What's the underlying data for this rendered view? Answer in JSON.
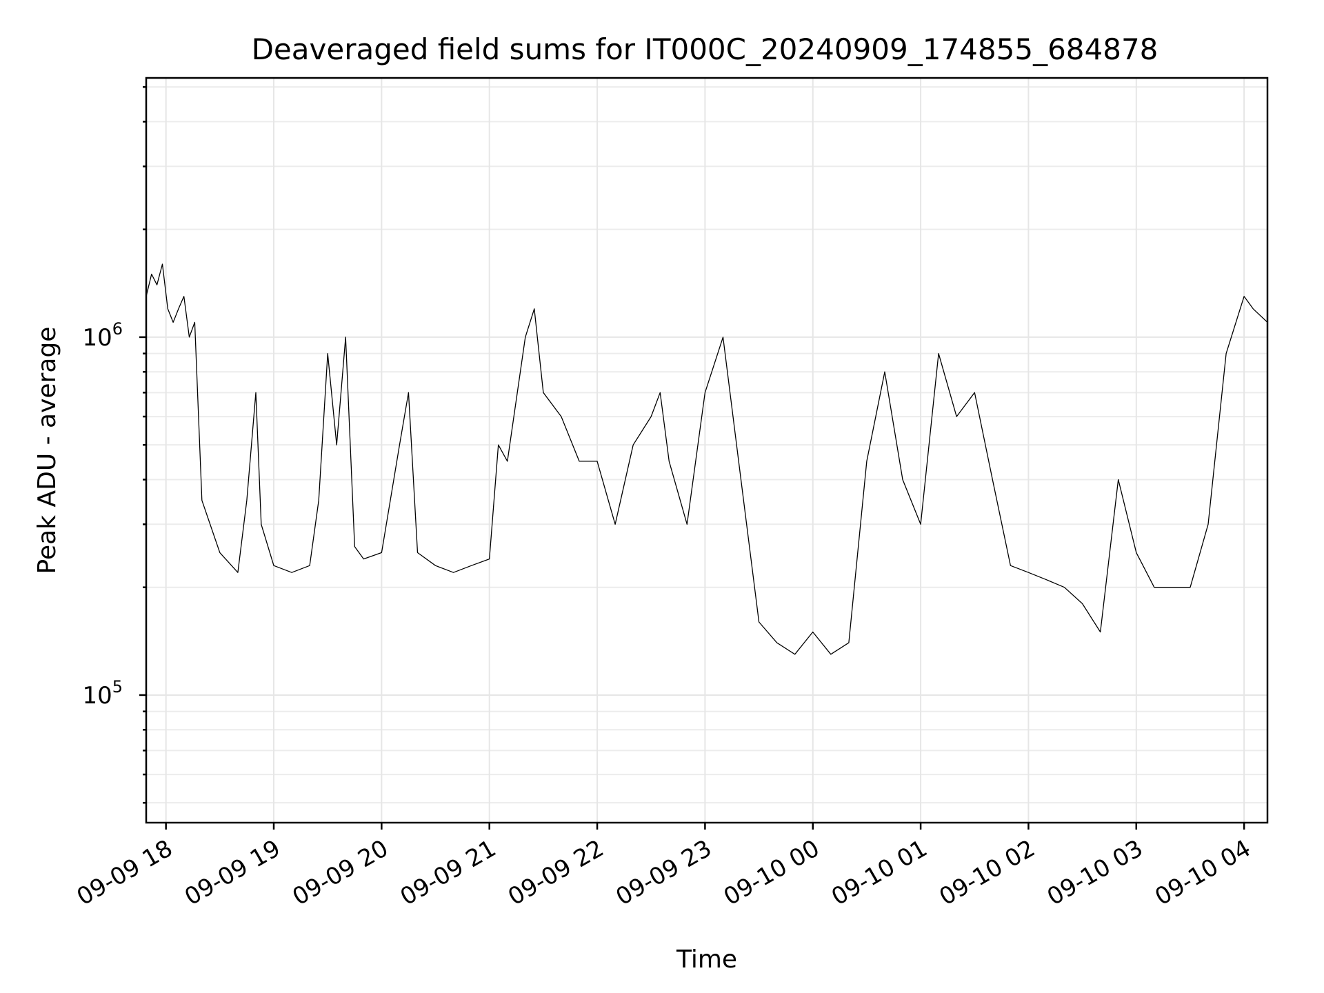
{
  "chart_data": {
    "type": "line",
    "title": "Deaveraged field sums for IT000C_20240909_174855_684878",
    "xlabel": "Time",
    "ylabel": "Peak ADU - average",
    "x_range": [
      "2024-09-09T17:49:00",
      "2024-09-10T04:13:00"
    ],
    "x_ticks": [
      "09-09 18",
      "09-09 19",
      "09-09 20",
      "09-09 21",
      "09-09 22",
      "09-09 23",
      "09-10 00",
      "09-10 01",
      "09-10 02",
      "09-10 03",
      "09-10 04"
    ],
    "x_tick_times": [
      "2024-09-09T18:00:00",
      "2024-09-09T19:00:00",
      "2024-09-09T20:00:00",
      "2024-09-09T21:00:00",
      "2024-09-09T22:00:00",
      "2024-09-09T23:00:00",
      "2024-09-10T00:00:00",
      "2024-09-10T01:00:00",
      "2024-09-10T02:00:00",
      "2024-09-10T03:00:00",
      "2024-09-10T04:00:00"
    ],
    "y_scale": "log",
    "ylim": [
      44000,
      5300000
    ],
    "y_ticks": [
      {
        "base": "10",
        "exp": "5",
        "value": 100000
      },
      {
        "base": "10",
        "exp": "6",
        "value": 1000000
      }
    ],
    "grid": true,
    "line_color": "#000000",
    "series": [
      {
        "x": [
          "2024-09-09T17:49:00",
          "2024-09-09T17:52:00",
          "2024-09-09T17:55:00",
          "2024-09-09T17:58:00",
          "2024-09-09T18:01:00",
          "2024-09-09T18:04:00",
          "2024-09-09T18:07:00",
          "2024-09-09T18:10:00",
          "2024-09-09T18:13:00",
          "2024-09-09T18:16:00",
          "2024-09-09T18:20:00",
          "2024-09-09T18:30:00",
          "2024-09-09T18:40:00",
          "2024-09-09T18:45:00",
          "2024-09-09T18:50:00",
          "2024-09-09T18:53:00",
          "2024-09-09T19:00:00",
          "2024-09-09T19:10:00",
          "2024-09-09T19:20:00",
          "2024-09-09T19:25:00",
          "2024-09-09T19:30:00",
          "2024-09-09T19:35:00",
          "2024-09-09T19:40:00",
          "2024-09-09T19:45:00",
          "2024-09-09T19:50:00",
          "2024-09-09T20:00:00",
          "2024-09-09T20:10:00",
          "2024-09-09T20:15:00",
          "2024-09-09T20:20:00",
          "2024-09-09T20:30:00",
          "2024-09-09T20:40:00",
          "2024-09-09T20:50:00",
          "2024-09-09T21:00:00",
          "2024-09-09T21:05:00",
          "2024-09-09T21:10:00",
          "2024-09-09T21:20:00",
          "2024-09-09T21:25:00",
          "2024-09-09T21:30:00",
          "2024-09-09T21:40:00",
          "2024-09-09T21:50:00",
          "2024-09-09T22:00:00",
          "2024-09-09T22:10:00",
          "2024-09-09T22:20:00",
          "2024-09-09T22:30:00",
          "2024-09-09T22:35:00",
          "2024-09-09T22:40:00",
          "2024-09-09T22:50:00",
          "2024-09-09T23:00:00",
          "2024-09-09T23:10:00",
          "2024-09-09T23:20:00",
          "2024-09-09T23:30:00",
          "2024-09-09T23:40:00",
          "2024-09-09T23:50:00",
          "2024-09-10T00:00:00",
          "2024-09-10T00:10:00",
          "2024-09-10T00:20:00",
          "2024-09-10T00:30:00",
          "2024-09-10T00:40:00",
          "2024-09-10T00:50:00",
          "2024-09-10T01:00:00",
          "2024-09-10T01:10:00",
          "2024-09-10T01:20:00",
          "2024-09-10T01:30:00",
          "2024-09-10T01:40:00",
          "2024-09-10T01:50:00",
          "2024-09-10T02:00:00",
          "2024-09-10T02:10:00",
          "2024-09-10T02:20:00",
          "2024-09-10T02:30:00",
          "2024-09-10T02:40:00",
          "2024-09-10T02:50:00",
          "2024-09-10T03:00:00",
          "2024-09-10T03:10:00",
          "2024-09-10T03:20:00",
          "2024-09-10T03:30:00",
          "2024-09-10T03:40:00",
          "2024-09-10T03:50:00",
          "2024-09-10T04:00:00",
          "2024-09-10T04:05:00",
          "2024-09-10T04:13:00"
        ],
        "y": [
          1300000,
          1500000,
          1400000,
          1600000,
          1200000,
          1100000,
          1200000,
          1300000,
          1000000,
          1100000,
          350000,
          250000,
          220000,
          350000,
          700000,
          300000,
          230000,
          220000,
          230000,
          350000,
          900000,
          500000,
          1000000,
          260000,
          240000,
          250000,
          500000,
          700000,
          250000,
          230000,
          220000,
          230000,
          240000,
          500000,
          450000,
          1000000,
          1200000,
          700000,
          600000,
          450000,
          450000,
          300000,
          500000,
          600000,
          700000,
          450000,
          300000,
          700000,
          1000000,
          400000,
          160000,
          140000,
          130000,
          150000,
          130000,
          140000,
          450000,
          800000,
          400000,
          300000,
          900000,
          600000,
          700000,
          400000,
          230000,
          220000,
          210000,
          200000,
          180000,
          150000,
          400000,
          250000,
          200000,
          200000,
          200000,
          300000,
          900000,
          1300000,
          1200000,
          1100000
        ]
      }
    ]
  }
}
